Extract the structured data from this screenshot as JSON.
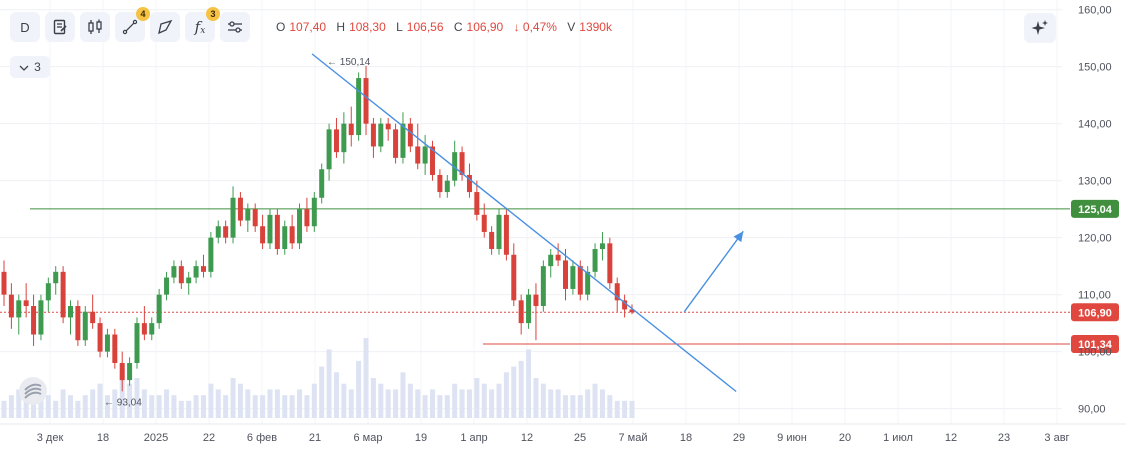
{
  "toolbar": {
    "interval_label": "D",
    "indicators_badge": "4",
    "fx_label": "f",
    "fx_sub": "x",
    "fx_badge": "3"
  },
  "ohlc": {
    "o_label": "O",
    "o_value": "107,40",
    "h_label": "H",
    "h_value": "108,30",
    "l_label": "L",
    "l_value": "106,56",
    "c_label": "C",
    "c_value": "106,90",
    "change": "↓ 0,47%",
    "v_label": "V",
    "v_value": "1390k"
  },
  "collapse_count": "3",
  "chart_data": {
    "type": "candlestick",
    "x_ticks": [
      "3 дек",
      "18",
      "2025",
      "22",
      "6 фев",
      "21",
      "6 мар",
      "19",
      "1 апр",
      "12",
      "25",
      "7 май",
      "18",
      "29",
      "9 июн",
      "20",
      "1 июл",
      "12",
      "23",
      "3 авг"
    ],
    "y_ticks": [
      "160,00",
      "150,00",
      "140,00",
      "130,00",
      "120,00",
      "110,00",
      "100,00",
      "90,00"
    ],
    "ylim": [
      88,
      161
    ],
    "last_price_label": "106,90",
    "last_price": 106.9,
    "hlines": [
      {
        "value": 125.04,
        "label": "125,04",
        "color": "#3f8f3f"
      },
      {
        "value": 101.34,
        "label": "101,34",
        "color": "#e0483f"
      }
    ],
    "annotations": [
      {
        "text": "150,14",
        "value": 150.14,
        "kind": "high"
      },
      {
        "text": "93,04",
        "value": 93.04,
        "kind": "low"
      }
    ],
    "candles": [
      [
        114,
        116,
        108,
        110
      ],
      [
        110,
        112,
        104,
        106
      ],
      [
        106,
        110,
        103,
        109
      ],
      [
        109,
        112,
        106,
        108
      ],
      [
        108,
        110,
        101,
        103
      ],
      [
        103,
        110,
        102,
        109
      ],
      [
        109,
        113,
        107,
        112
      ],
      [
        112,
        115,
        110,
        114
      ],
      [
        114,
        115,
        105,
        106
      ],
      [
        106,
        109,
        103,
        108
      ],
      [
        108,
        109,
        101,
        102
      ],
      [
        102,
        108,
        101,
        107
      ],
      [
        107,
        110,
        104,
        105
      ],
      [
        105,
        106,
        99,
        100
      ],
      [
        100,
        104,
        99,
        103
      ],
      [
        103,
        104,
        97,
        98
      ],
      [
        98,
        100,
        93.04,
        95
      ],
      [
        95,
        99,
        94,
        98
      ],
      [
        98,
        106,
        97,
        105
      ],
      [
        105,
        108,
        102,
        103
      ],
      [
        103,
        106,
        102,
        105
      ],
      [
        105,
        111,
        104,
        110
      ],
      [
        110,
        114,
        109,
        113
      ],
      [
        113,
        116,
        112,
        115
      ],
      [
        115,
        116,
        111,
        112
      ],
      [
        112,
        114,
        110,
        113
      ],
      [
        113,
        116,
        112,
        115
      ],
      [
        115,
        117,
        113,
        114
      ],
      [
        114,
        121,
        113,
        120
      ],
      [
        120,
        123,
        119,
        122
      ],
      [
        122,
        123,
        119,
        120
      ],
      [
        120,
        129,
        119,
        127
      ],
      [
        127,
        128,
        122,
        123
      ],
      [
        123,
        126,
        121,
        125
      ],
      [
        125,
        126,
        121,
        122
      ],
      [
        122,
        124,
        118,
        119
      ],
      [
        119,
        125,
        118,
        124
      ],
      [
        124,
        125,
        117,
        118
      ],
      [
        118,
        123,
        117,
        122
      ],
      [
        122,
        124,
        118,
        119
      ],
      [
        119,
        126,
        118,
        125
      ],
      [
        125,
        127,
        121,
        122
      ],
      [
        122,
        128,
        121,
        127
      ],
      [
        127,
        133,
        126,
        132
      ],
      [
        132,
        140,
        130,
        139
      ],
      [
        139,
        141,
        134,
        135
      ],
      [
        135,
        142,
        133,
        140
      ],
      [
        140,
        143,
        136,
        138
      ],
      [
        138,
        149,
        137,
        148
      ],
      [
        148,
        150.14,
        138,
        140
      ],
      [
        140,
        141,
        134,
        136
      ],
      [
        136,
        141,
        135,
        140
      ],
      [
        140,
        141,
        137,
        139
      ],
      [
        139,
        140,
        133,
        134
      ],
      [
        134,
        142,
        133,
        140
      ],
      [
        140,
        141,
        135,
        136
      ],
      [
        136,
        140,
        132,
        133
      ],
      [
        133,
        138,
        131,
        136
      ],
      [
        136,
        137,
        130,
        131
      ],
      [
        131,
        132,
        127,
        128
      ],
      [
        128,
        131,
        127,
        130
      ],
      [
        130,
        137,
        129,
        135
      ],
      [
        135,
        136,
        130,
        131
      ],
      [
        131,
        133,
        127,
        128
      ],
      [
        128,
        130,
        123,
        124
      ],
      [
        124,
        126,
        120,
        121
      ],
      [
        121,
        122,
        117,
        118
      ],
      [
        118,
        125,
        117,
        124
      ],
      [
        124,
        125,
        116,
        117
      ],
      [
        117,
        119,
        108,
        109
      ],
      [
        109,
        110,
        103,
        105
      ],
      [
        105,
        111,
        104,
        110
      ],
      [
        110,
        112,
        102,
        108
      ],
      [
        108,
        116,
        107,
        115
      ],
      [
        115,
        118,
        113,
        117
      ],
      [
        117,
        119,
        115,
        116
      ],
      [
        116,
        118,
        109,
        111
      ],
      [
        111,
        116,
        110,
        115
      ],
      [
        115,
        116,
        109,
        110
      ],
      [
        110,
        115,
        109,
        114
      ],
      [
        114,
        119,
        113,
        118
      ],
      [
        118,
        121,
        116,
        119
      ],
      [
        119,
        120,
        111,
        112
      ],
      [
        112,
        113,
        107,
        109
      ],
      [
        109,
        110,
        106,
        107.4
      ],
      [
        107.4,
        108.3,
        106.56,
        106.9
      ]
    ],
    "volumes": [
      3,
      4,
      5,
      4,
      6,
      5,
      4,
      3,
      5,
      4,
      3,
      4,
      5,
      6,
      4,
      5,
      8,
      6,
      7,
      5,
      4,
      4,
      5,
      4,
      3,
      3,
      4,
      4,
      6,
      5,
      4,
      7,
      6,
      5,
      4,
      4,
      5,
      5,
      4,
      4,
      5,
      4,
      6,
      9,
      12,
      8,
      6,
      5,
      10,
      14,
      7,
      6,
      5,
      5,
      8,
      6,
      5,
      4,
      5,
      4,
      4,
      6,
      5,
      5,
      7,
      6,
      5,
      6,
      8,
      9,
      10,
      12,
      7,
      6,
      5,
      5,
      4,
      4,
      4,
      5,
      6,
      5,
      4,
      3,
      3,
      3
    ],
    "trend_line": {
      "from": [
        0,
        150.14
      ],
      "to": [
        88,
        93
      ],
      "color": "#4a90e2"
    },
    "projection_arrow": {
      "from": [
        91,
        107
      ],
      "to": [
        96,
        119
      ],
      "color": "#4a90e2"
    }
  }
}
